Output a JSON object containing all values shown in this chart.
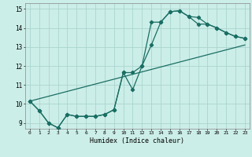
{
  "title": "",
  "xlabel": "Humidex (Indice chaleur)",
  "xlim": [
    -0.5,
    23.5
  ],
  "ylim": [
    8.7,
    15.3
  ],
  "yticks": [
    9,
    10,
    11,
    12,
    13,
    14,
    15
  ],
  "xticks": [
    0,
    1,
    2,
    3,
    4,
    5,
    6,
    7,
    8,
    9,
    10,
    11,
    12,
    13,
    14,
    15,
    16,
    17,
    18,
    19,
    20,
    21,
    22,
    23
  ],
  "bg_color": "#cceee8",
  "grid_color_major": "#aad4ce",
  "grid_color_minor": "#bbddd8",
  "line_color": "#1a6e64",
  "line_width": 0.9,
  "marker": "D",
  "marker_size": 2.2,
  "line1": {
    "x": [
      0,
      1,
      2,
      3,
      4,
      5,
      6,
      7,
      8,
      9,
      10,
      11,
      12,
      13,
      14,
      15,
      16,
      17,
      18,
      19,
      20,
      21,
      22,
      23
    ],
    "y": [
      10.15,
      9.65,
      9.0,
      8.75,
      9.45,
      9.35,
      9.35,
      9.35,
      9.45,
      9.7,
      11.65,
      10.75,
      12.0,
      14.3,
      14.3,
      14.85,
      14.9,
      14.6,
      14.55,
      14.2,
      14.0,
      13.75,
      13.55,
      13.45
    ]
  },
  "line2": {
    "x": [
      0,
      1,
      2,
      3,
      4,
      5,
      6,
      7,
      8,
      9,
      10,
      11,
      12,
      13,
      14,
      15,
      16,
      17,
      18,
      19,
      20,
      21,
      22,
      23
    ],
    "y": [
      10.15,
      9.65,
      9.0,
      8.75,
      9.45,
      9.35,
      9.35,
      9.35,
      9.45,
      9.7,
      11.65,
      11.65,
      12.0,
      13.1,
      14.3,
      14.85,
      14.9,
      14.6,
      14.2,
      14.2,
      14.0,
      13.75,
      13.55,
      13.45
    ]
  },
  "line3": {
    "x": [
      0,
      23
    ],
    "y": [
      10.15,
      13.1
    ]
  }
}
